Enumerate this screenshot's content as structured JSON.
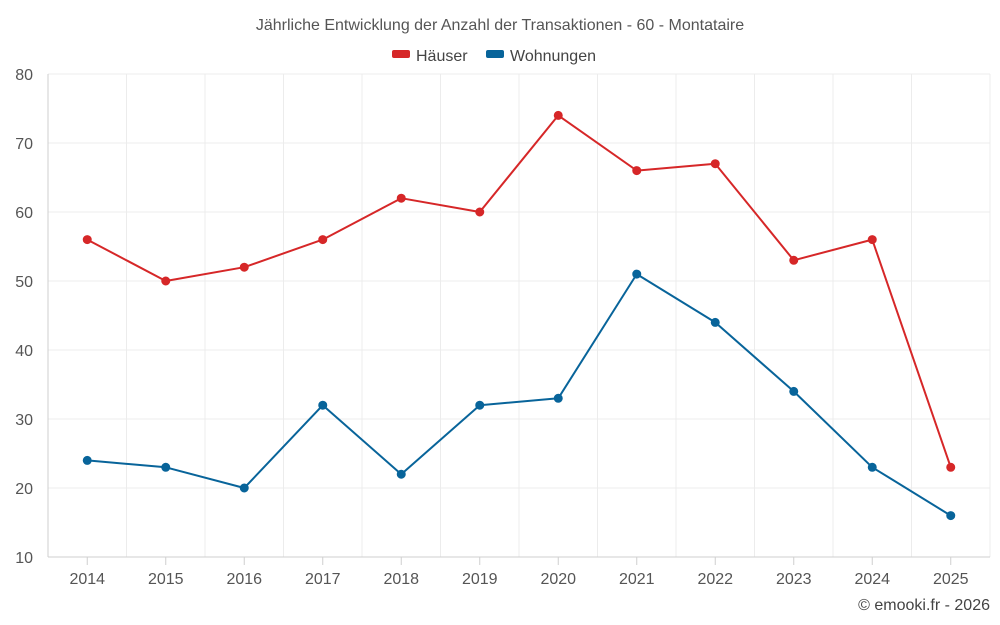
{
  "chart_data": {
    "type": "line",
    "title": "Jährliche Entwicklung der Anzahl der Transaktionen - 60 - Montataire",
    "categories": [
      "2014",
      "2015",
      "2016",
      "2017",
      "2018",
      "2019",
      "2020",
      "2021",
      "2022",
      "2023",
      "2024",
      "2025"
    ],
    "series": [
      {
        "name": "Häuser",
        "color": "#d62728",
        "values": [
          56,
          50,
          52,
          56,
          62,
          60,
          74,
          66,
          67,
          53,
          56,
          23
        ]
      },
      {
        "name": "Wohnungen",
        "color": "#08649a",
        "values": [
          24,
          23,
          20,
          32,
          22,
          32,
          33,
          51,
          44,
          34,
          23,
          16
        ]
      }
    ],
    "ylim": [
      10,
      80
    ],
    "yticks": [
      "10",
      "20",
      "30",
      "40",
      "50",
      "60",
      "70",
      "80"
    ],
    "grid": true,
    "legend_position": "top-center",
    "credit": "© emooki.fr - 2026"
  }
}
